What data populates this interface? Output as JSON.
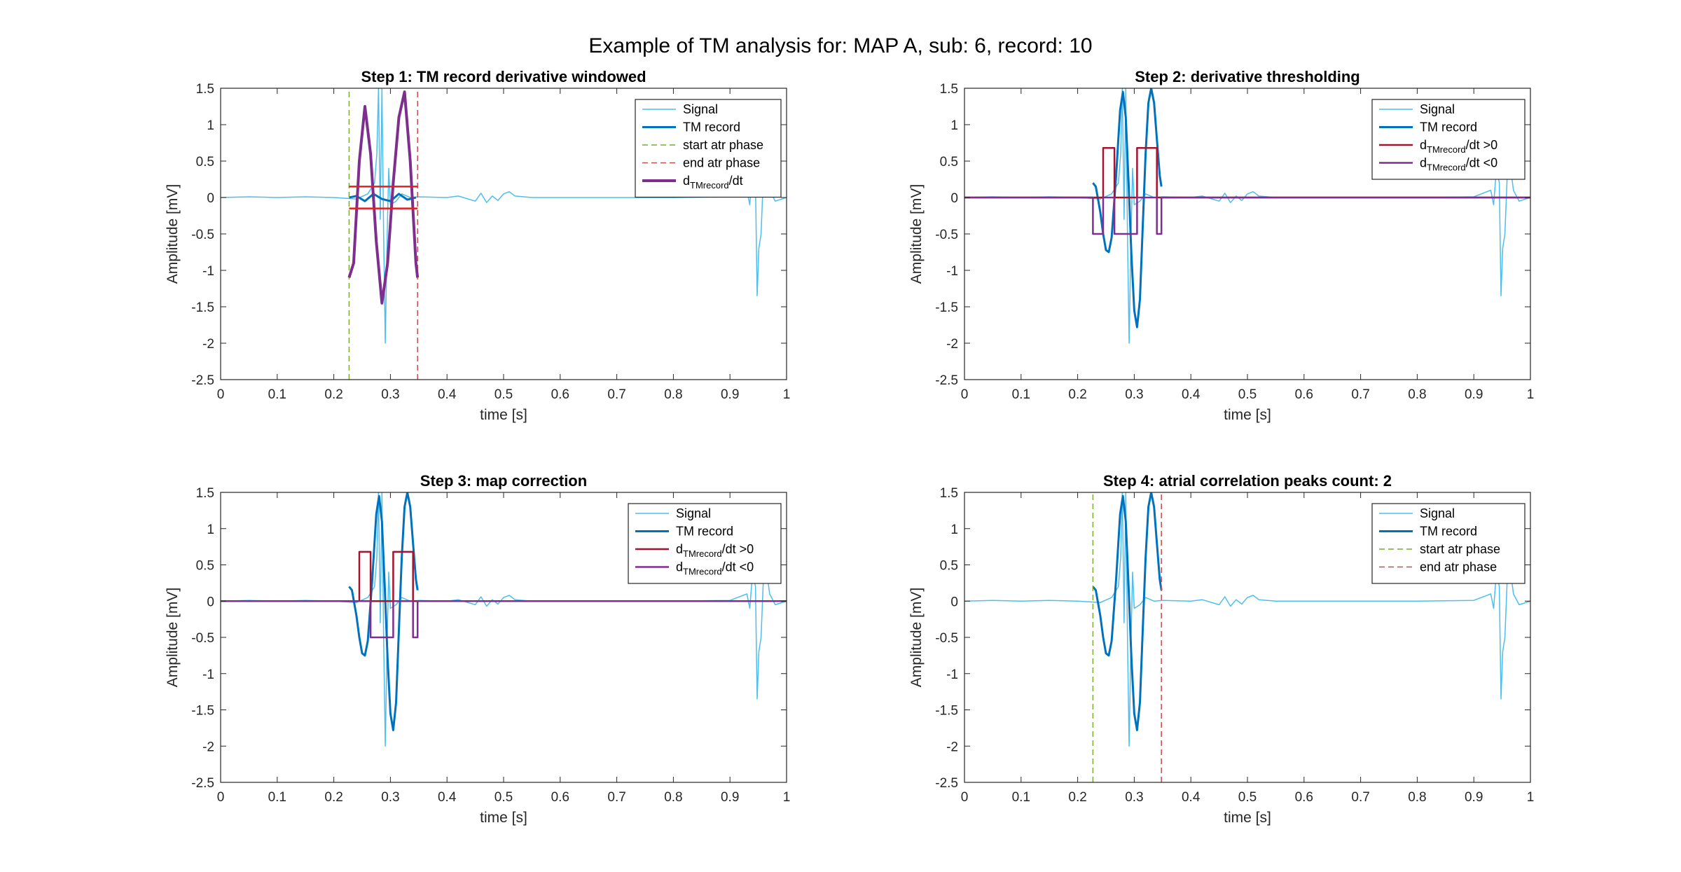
{
  "figure": {
    "title": "Example of TM analysis for: MAP A, sub: 6, record: 10"
  },
  "chart_data": [
    {
      "type": "line",
      "title": "Step 1: TM record derivative windowed",
      "xlabel": "time [s]",
      "ylabel": "Amplitude [mV]",
      "xlim": [
        0,
        1
      ],
      "ylim": [
        -2.5,
        1.5
      ],
      "xticks": [
        "0",
        "0.1",
        "0.2",
        "0.3",
        "0.4",
        "0.5",
        "0.6",
        "0.7",
        "0.8",
        "0.9",
        "1"
      ],
      "yticks": [
        "-2.5",
        "-2",
        "-1.5",
        "-1",
        "-0.5",
        "0",
        "0.5",
        "1",
        "1.5"
      ],
      "legend": {
        "position": "top-right",
        "entries": [
          "Signal",
          "TM record",
          "start atr phase",
          "end atr phase",
          "d_TMrecord/dt"
        ]
      },
      "series": [
        {
          "name": "Signal",
          "style": "signal",
          "x": [
            0,
            0.05,
            0.1,
            0.15,
            0.2,
            0.24,
            0.26,
            0.272,
            0.276,
            0.279,
            0.282,
            0.285,
            0.288,
            0.291,
            0.294,
            0.297,
            0.3,
            0.31,
            0.32,
            0.335,
            0.35,
            0.4,
            0.42,
            0.45,
            0.46,
            0.47,
            0.48,
            0.49,
            0.5,
            0.51,
            0.52,
            0.55,
            0.6,
            0.7,
            0.8,
            0.9,
            0.93,
            0.935,
            0.94,
            0.945,
            0.948,
            0.951,
            0.955,
            0.96,
            0.965,
            0.97,
            0.98,
            1.0
          ],
          "y": [
            0,
            0.01,
            0,
            0.01,
            0,
            -0.02,
            0.05,
            0.2,
            0.6,
            1.5,
            -0.3,
            1.5,
            -0.5,
            -2.0,
            -0.6,
            0.4,
            -0.1,
            -0.05,
            0.05,
            0,
            0.01,
            0,
            0.02,
            -0.05,
            0.06,
            -0.07,
            0.02,
            -0.04,
            0.05,
            0.08,
            0.02,
            0,
            0,
            0,
            0,
            0.01,
            0.1,
            -0.1,
            0.4,
            0.2,
            -1.35,
            -0.7,
            -0.5,
            0.5,
            0.4,
            0.1,
            -0.05,
            0
          ]
        },
        {
          "name": "TM record",
          "style": "tm",
          "x": [
            0.227,
            0.24,
            0.255,
            0.27,
            0.285,
            0.3,
            0.315,
            0.33,
            0.345
          ],
          "y": [
            0.0,
            0.02,
            -0.05,
            0.05,
            -0.02,
            -0.05,
            0.05,
            -0.03,
            0.0
          ]
        },
        {
          "name": "start atr phase",
          "style": "vstart",
          "x": [
            0.227,
            0.227
          ],
          "y": [
            -2.5,
            1.5
          ]
        },
        {
          "name": "end atr phase",
          "style": "vend",
          "x": [
            0.348,
            0.348
          ],
          "y": [
            -2.5,
            1.5
          ]
        },
        {
          "name": "d_TMrecord/dt",
          "style": "deriv",
          "x": [
            0.227,
            0.235,
            0.245,
            0.255,
            0.265,
            0.275,
            0.285,
            0.295,
            0.305,
            0.315,
            0.325,
            0.335,
            0.345,
            0.348
          ],
          "y": [
            -1.1,
            -0.9,
            0.5,
            1.25,
            0.6,
            -0.6,
            -1.45,
            -0.9,
            0.2,
            1.1,
            1.45,
            0.5,
            -0.9,
            -1.1
          ]
        },
        {
          "name": "",
          "style": "thresh",
          "x": [
            0.227,
            0.348
          ],
          "y": [
            0.15,
            0.15
          ]
        },
        {
          "name": "",
          "style": "thresh",
          "x": [
            0.227,
            0.348
          ],
          "y": [
            -0.15,
            -0.15
          ]
        }
      ]
    },
    {
      "type": "line",
      "title": "Step 2: derivative thresholding",
      "xlabel": "time [s]",
      "ylabel": "Amplitude [mV]",
      "xlim": [
        0,
        1
      ],
      "ylim": [
        -2.5,
        1.5
      ],
      "xticks": [
        "0",
        "0.1",
        "0.2",
        "0.3",
        "0.4",
        "0.5",
        "0.6",
        "0.7",
        "0.8",
        "0.9",
        "1"
      ],
      "yticks": [
        "-2.5",
        "-2",
        "-1.5",
        "-1",
        "-0.5",
        "0",
        "0.5",
        "1",
        "1.5"
      ],
      "legend": {
        "position": "top-right",
        "entries": [
          "Signal",
          "TM record",
          "d_TMrecord/dt >0",
          "d_TMrecord/dt <0"
        ]
      },
      "series": [
        {
          "name": "Signal",
          "style": "signal",
          "x": [
            0,
            0.05,
            0.1,
            0.15,
            0.2,
            0.24,
            0.26,
            0.272,
            0.276,
            0.279,
            0.282,
            0.285,
            0.288,
            0.291,
            0.294,
            0.297,
            0.3,
            0.31,
            0.32,
            0.335,
            0.35,
            0.4,
            0.42,
            0.45,
            0.46,
            0.47,
            0.48,
            0.49,
            0.5,
            0.51,
            0.52,
            0.55,
            0.6,
            0.7,
            0.8,
            0.9,
            0.93,
            0.935,
            0.94,
            0.945,
            0.948,
            0.951,
            0.955,
            0.96,
            0.965,
            0.97,
            0.98,
            1.0
          ],
          "y": [
            0,
            0.01,
            0,
            0.01,
            0,
            -0.02,
            0.05,
            0.2,
            0.6,
            1.5,
            -0.3,
            1.5,
            -0.5,
            -2.0,
            -0.6,
            0.4,
            -0.1,
            -0.05,
            0.05,
            0,
            0.01,
            0,
            0.02,
            -0.05,
            0.06,
            -0.07,
            0.02,
            -0.04,
            0.05,
            0.08,
            0.02,
            0,
            0,
            0,
            0,
            0.01,
            0.1,
            -0.1,
            0.4,
            0.2,
            -1.35,
            -0.7,
            -0.5,
            0.5,
            0.4,
            0.1,
            -0.05,
            0
          ]
        },
        {
          "name": "TM record",
          "style": "tm",
          "x": [
            0.227,
            0.232,
            0.24,
            0.245,
            0.25,
            0.255,
            0.26,
            0.268,
            0.275,
            0.28,
            0.285,
            0.29,
            0.295,
            0.3,
            0.305,
            0.31,
            0.315,
            0.32,
            0.325,
            0.33,
            0.335,
            0.34,
            0.345,
            0.348
          ],
          "y": [
            0.2,
            0.15,
            -0.2,
            -0.5,
            -0.72,
            -0.75,
            -0.55,
            0.3,
            1.2,
            1.45,
            1.1,
            0.2,
            -0.8,
            -1.55,
            -1.78,
            -1.4,
            -0.4,
            0.6,
            1.3,
            1.5,
            1.3,
            0.8,
            0.3,
            0.15
          ]
        },
        {
          "name": "d_TMrecord/dt >0",
          "style": "pos",
          "x": [
            0,
            0.245,
            0.245,
            0.265,
            0.265,
            0.305,
            0.305,
            0.34,
            0.34,
            1
          ],
          "y": [
            0,
            0,
            0.68,
            0.68,
            0,
            0,
            0.68,
            0.68,
            0,
            0
          ]
        },
        {
          "name": "d_TMrecord/dt <0",
          "style": "neg",
          "x": [
            0,
            0.227,
            0.227,
            0.245,
            0.245,
            0.265,
            0.265,
            0.305,
            0.305,
            0.34,
            0.34,
            0.348,
            0.348,
            1
          ],
          "y": [
            0,
            0,
            -0.5,
            -0.5,
            0,
            0,
            -0.5,
            -0.5,
            0,
            0,
            -0.5,
            -0.5,
            0,
            0
          ]
        }
      ]
    },
    {
      "type": "line",
      "title": "Step 3: map correction",
      "xlabel": "time [s]",
      "ylabel": "Amplitude [mV]",
      "xlim": [
        0,
        1
      ],
      "ylim": [
        -2.5,
        1.5
      ],
      "xticks": [
        "0",
        "0.1",
        "0.2",
        "0.3",
        "0.4",
        "0.5",
        "0.6",
        "0.7",
        "0.8",
        "0.9",
        "1"
      ],
      "yticks": [
        "-2.5",
        "-2",
        "-1.5",
        "-1",
        "-0.5",
        "0",
        "0.5",
        "1",
        "1.5"
      ],
      "legend": {
        "position": "top-right",
        "entries": [
          "Signal",
          "TM record",
          "d_TMrecord/dt >0",
          "d_TMrecord/dt <0"
        ]
      },
      "series": [
        {
          "name": "Signal",
          "style": "signal",
          "x": [
            0,
            0.05,
            0.1,
            0.15,
            0.2,
            0.24,
            0.26,
            0.272,
            0.276,
            0.279,
            0.282,
            0.285,
            0.288,
            0.291,
            0.294,
            0.297,
            0.3,
            0.31,
            0.32,
            0.335,
            0.35,
            0.4,
            0.42,
            0.45,
            0.46,
            0.47,
            0.48,
            0.49,
            0.5,
            0.51,
            0.52,
            0.55,
            0.6,
            0.7,
            0.8,
            0.9,
            0.93,
            0.935,
            0.94,
            0.945,
            0.948,
            0.951,
            0.955,
            0.96,
            0.965,
            0.97,
            0.98,
            1.0
          ],
          "y": [
            0,
            0.01,
            0,
            0.01,
            0,
            -0.02,
            0.05,
            0.2,
            0.6,
            1.5,
            -0.3,
            1.5,
            -0.5,
            -2.0,
            -0.6,
            0.4,
            -0.1,
            -0.05,
            0.05,
            0,
            0.01,
            0,
            0.02,
            -0.05,
            0.06,
            -0.07,
            0.02,
            -0.04,
            0.05,
            0.08,
            0.02,
            0,
            0,
            0,
            0,
            0.01,
            0.1,
            -0.1,
            0.4,
            0.2,
            -1.35,
            -0.7,
            -0.5,
            0.5,
            0.4,
            0.1,
            -0.05,
            0
          ]
        },
        {
          "name": "TM record",
          "style": "tm",
          "x": [
            0.227,
            0.232,
            0.24,
            0.245,
            0.25,
            0.255,
            0.26,
            0.268,
            0.275,
            0.28,
            0.285,
            0.29,
            0.295,
            0.3,
            0.305,
            0.31,
            0.315,
            0.32,
            0.325,
            0.33,
            0.335,
            0.34,
            0.345,
            0.348
          ],
          "y": [
            0.2,
            0.15,
            -0.2,
            -0.5,
            -0.72,
            -0.75,
            -0.55,
            0.3,
            1.2,
            1.45,
            1.1,
            0.2,
            -0.8,
            -1.55,
            -1.78,
            -1.4,
            -0.4,
            0.6,
            1.3,
            1.5,
            1.3,
            0.8,
            0.3,
            0.15
          ]
        },
        {
          "name": "d_TMrecord/dt >0",
          "style": "pos",
          "x": [
            0,
            0.245,
            0.245,
            0.265,
            0.265,
            0.305,
            0.305,
            0.34,
            0.34,
            1
          ],
          "y": [
            0,
            0,
            0.68,
            0.68,
            0,
            0,
            0.68,
            0.68,
            0,
            0
          ]
        },
        {
          "name": "d_TMrecord/dt <0",
          "style": "neg",
          "x": [
            0,
            0.265,
            0.265,
            0.305,
            0.305,
            0.34,
            0.34,
            0.348,
            0.348,
            1
          ],
          "y": [
            0,
            0,
            -0.5,
            -0.5,
            0,
            0,
            -0.5,
            -0.5,
            0,
            0
          ]
        }
      ]
    },
    {
      "type": "line",
      "title": "Step 4: atrial correlation peaks count: 2",
      "xlabel": "time [s]",
      "ylabel": "Amplitude [mV]",
      "xlim": [
        0,
        1
      ],
      "ylim": [
        -2.5,
        1.5
      ],
      "xticks": [
        "0",
        "0.1",
        "0.2",
        "0.3",
        "0.4",
        "0.5",
        "0.6",
        "0.7",
        "0.8",
        "0.9",
        "1"
      ],
      "yticks": [
        "-2.5",
        "-2",
        "-1.5",
        "-1",
        "-0.5",
        "0",
        "0.5",
        "1",
        "1.5"
      ],
      "legend": {
        "position": "top-right",
        "entries": [
          "Signal",
          "TM record",
          "start atr phase",
          "end atr phase"
        ]
      },
      "series": [
        {
          "name": "Signal",
          "style": "signal",
          "x": [
            0,
            0.05,
            0.1,
            0.15,
            0.2,
            0.24,
            0.26,
            0.272,
            0.276,
            0.279,
            0.282,
            0.285,
            0.288,
            0.291,
            0.294,
            0.297,
            0.3,
            0.31,
            0.32,
            0.335,
            0.35,
            0.4,
            0.42,
            0.45,
            0.46,
            0.47,
            0.48,
            0.49,
            0.5,
            0.51,
            0.52,
            0.55,
            0.6,
            0.7,
            0.8,
            0.9,
            0.93,
            0.935,
            0.94,
            0.945,
            0.948,
            0.951,
            0.955,
            0.96,
            0.965,
            0.97,
            0.98,
            1.0
          ],
          "y": [
            0,
            0.01,
            0,
            0.01,
            0,
            -0.02,
            0.05,
            0.2,
            0.6,
            1.5,
            -0.3,
            1.5,
            -0.5,
            -2.0,
            -0.6,
            0.4,
            -0.1,
            -0.05,
            0.05,
            0,
            0.01,
            0,
            0.02,
            -0.05,
            0.06,
            -0.07,
            0.02,
            -0.04,
            0.05,
            0.08,
            0.02,
            0,
            0,
            0,
            0,
            0.01,
            0.1,
            -0.1,
            0.4,
            0.2,
            -1.35,
            -0.7,
            -0.5,
            0.5,
            0.4,
            0.1,
            -0.05,
            0
          ]
        },
        {
          "name": "TM record",
          "style": "tm",
          "x": [
            0.227,
            0.232,
            0.24,
            0.245,
            0.25,
            0.255,
            0.26,
            0.268,
            0.275,
            0.28,
            0.285,
            0.29,
            0.295,
            0.3,
            0.305,
            0.31,
            0.315,
            0.32,
            0.325,
            0.33,
            0.335,
            0.34,
            0.345,
            0.348
          ],
          "y": [
            0.2,
            0.15,
            -0.2,
            -0.5,
            -0.72,
            -0.75,
            -0.55,
            0.3,
            1.2,
            1.45,
            1.1,
            0.2,
            -0.8,
            -1.55,
            -1.78,
            -1.4,
            -0.4,
            0.6,
            1.3,
            1.5,
            1.3,
            0.8,
            0.3,
            0.15
          ]
        },
        {
          "name": "start atr phase",
          "style": "vstart",
          "x": [
            0.227,
            0.227
          ],
          "y": [
            -2.5,
            1.5
          ]
        },
        {
          "name": "end atr phase",
          "style": "vend",
          "x": [
            0.348,
            0.348
          ],
          "y": [
            -2.5,
            1.5
          ]
        }
      ]
    }
  ],
  "styles": {
    "signal": {
      "color": "#4DBEEE",
      "width": 1.5,
      "dash": ""
    },
    "tm": {
      "color": "#0072BD",
      "width": 3,
      "dash": ""
    },
    "vstart": {
      "color": "#77AC30",
      "width": 1.5,
      "dash": "8,5"
    },
    "vend": {
      "color": "#C0504D",
      "width": 1.5,
      "dash": "8,5"
    },
    "deriv": {
      "color": "#7E2F8E",
      "width": 4,
      "dash": ""
    },
    "thresh": {
      "color": "#E02020",
      "width": 2.5,
      "dash": ""
    },
    "pos": {
      "color": "#A2142F",
      "width": 2.5,
      "dash": ""
    },
    "neg": {
      "color": "#7E2F8E",
      "width": 2.5,
      "dash": ""
    }
  }
}
